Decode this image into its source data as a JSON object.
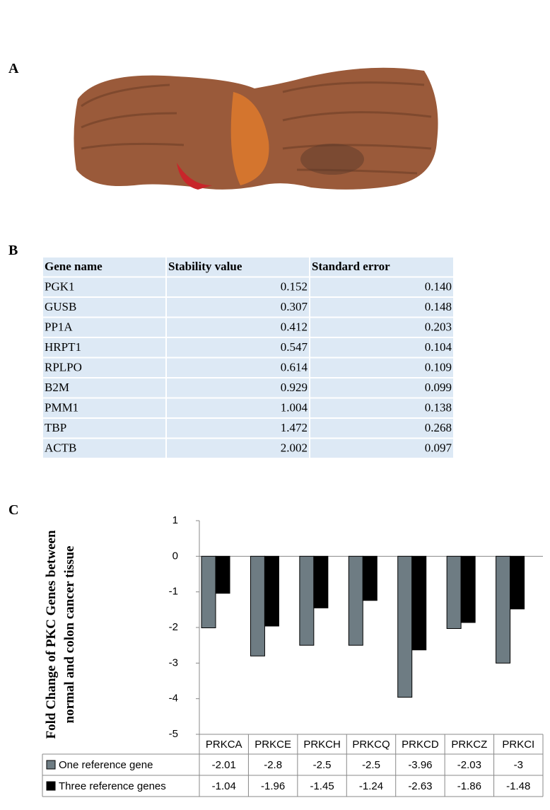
{
  "panel_labels": [
    "A",
    "B",
    "C"
  ],
  "table": {
    "header": [
      "Gene name",
      "Stability value",
      "Standard error"
    ],
    "rows": [
      [
        "PGK1",
        "0.152",
        "0.140"
      ],
      [
        "GUSB",
        "0.307",
        "0.148"
      ],
      [
        "PP1A",
        "0.412",
        "0.203"
      ],
      [
        "HRPT1",
        "0.547",
        "0.104"
      ],
      [
        "RPLPO",
        "0.614",
        "0.109"
      ],
      [
        "B2M",
        "0.929",
        "0.099"
      ],
      [
        "PMM1",
        "1.004",
        "0.138"
      ],
      [
        "TBP",
        "1.472",
        "0.268"
      ],
      [
        "ACTB",
        "2.002",
        "0.097"
      ]
    ]
  },
  "chart_data": {
    "type": "bar",
    "ylabel": [
      "Fold Change of PKC Genes between",
      "normal and colon cancer tissue"
    ],
    "categories": [
      "PRKCA",
      "PRKCE",
      "PRKCH",
      "PRKCQ",
      "PRKCD",
      "PRKCZ",
      "PRKCI"
    ],
    "series": [
      {
        "name": "One reference gene",
        "color": "#6e7c83",
        "values": [
          -2.01,
          -2.8,
          -2.5,
          -2.5,
          -3.96,
          -2.03,
          -3
        ]
      },
      {
        "name": "Three reference genes",
        "color": "#000000",
        "values": [
          -1.04,
          -1.96,
          -1.45,
          -1.24,
          -2.63,
          -1.86,
          -1.48
        ]
      }
    ],
    "ylim": [
      -5,
      1
    ],
    "yticks": [
      -5,
      -4,
      -3,
      -2,
      -1,
      0,
      1
    ],
    "data_table": true
  }
}
